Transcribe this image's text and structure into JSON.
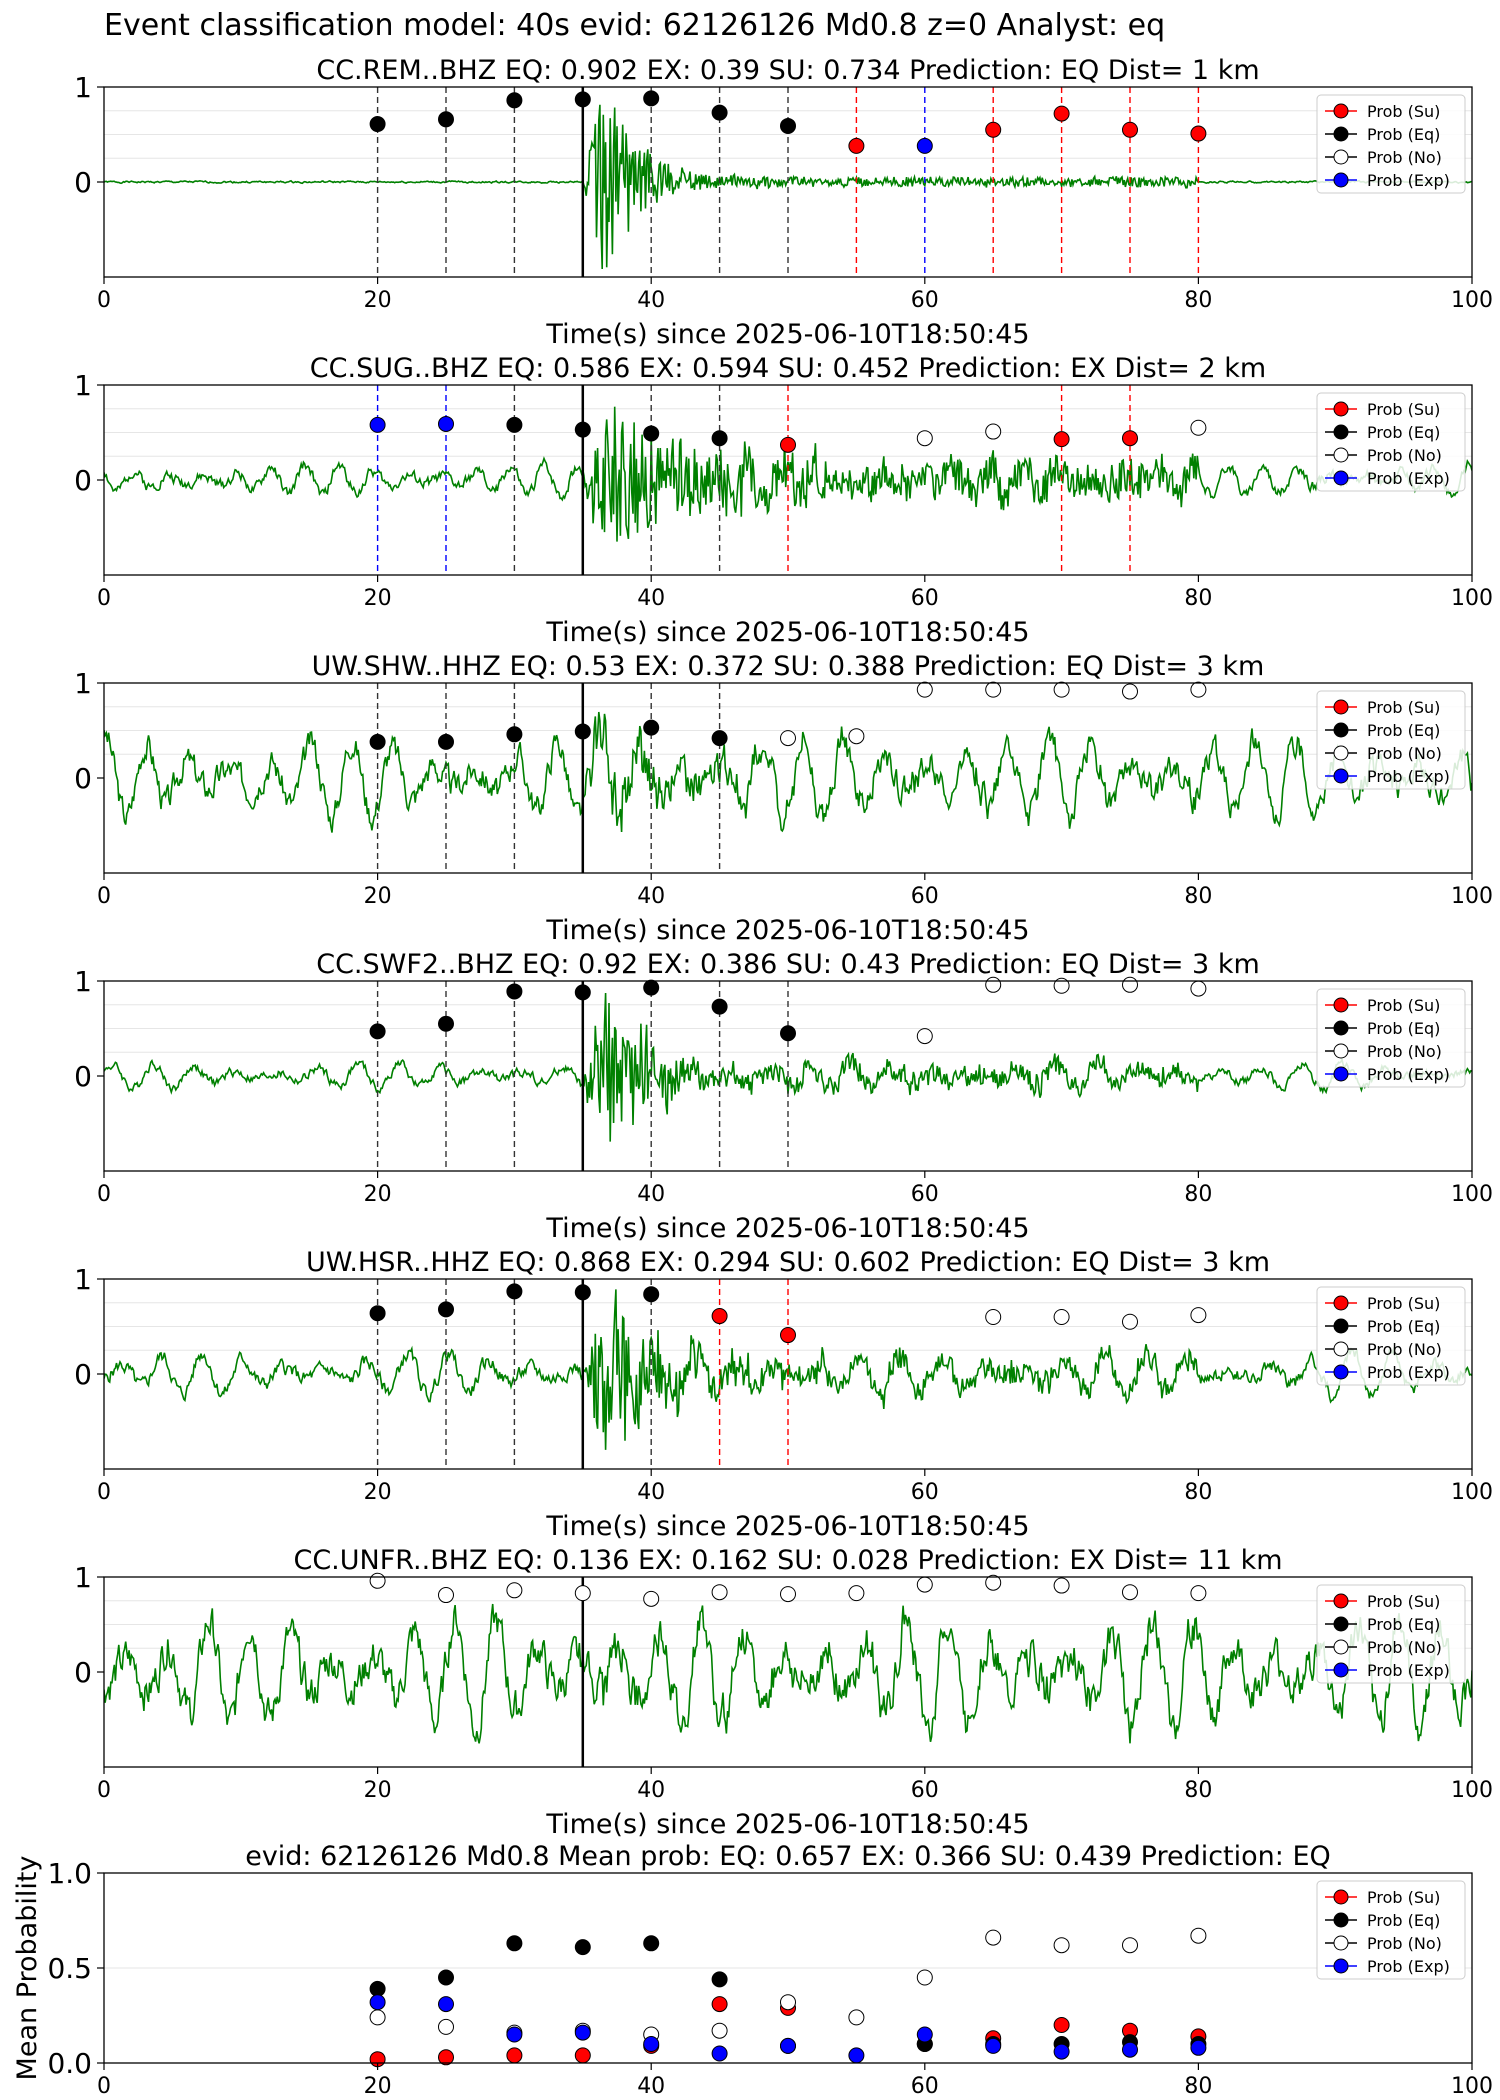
{
  "figure": {
    "suptitle": "Event classification model: 40s evid: 62126126 Md0.8 z=0 Analyst: eq",
    "xlabel": "Time(s) since 2025-06-10T18:50:45",
    "legend": [
      "Prob (Su)",
      "Prob (Eq)",
      "Prob (No)",
      "Prob (Exp)"
    ],
    "colors": {
      "su": "#ff0000",
      "eq": "#000000",
      "no": "#ffffff",
      "exp": "#0000ff",
      "trace": "#008000"
    }
  },
  "chart_data": [
    {
      "type": "scatter",
      "title": "CC.REM..BHZ   EQ: 0.902  EX: 0.39  SU: 0.734   Prediction: EQ    Dist= 1 km",
      "xlim": [
        0,
        100
      ],
      "ylim": [
        -1,
        1
      ],
      "xticks": [
        "0",
        "20",
        "40",
        "60",
        "80",
        "100"
      ],
      "yticks": [
        "0",
        "1"
      ],
      "x": [
        20,
        25,
        30,
        35,
        40,
        45,
        50,
        55,
        60,
        65,
        70,
        75,
        80
      ],
      "points": [
        {
          "x": 20,
          "y": 0.61,
          "class": "eq"
        },
        {
          "x": 25,
          "y": 0.66,
          "class": "eq"
        },
        {
          "x": 30,
          "y": 0.86,
          "class": "eq"
        },
        {
          "x": 35,
          "y": 0.87,
          "class": "eq"
        },
        {
          "x": 40,
          "y": 0.88,
          "class": "eq"
        },
        {
          "x": 45,
          "y": 0.73,
          "class": "eq"
        },
        {
          "x": 50,
          "y": 0.59,
          "class": "eq"
        },
        {
          "x": 55,
          "y": 0.38,
          "class": "su"
        },
        {
          "x": 60,
          "y": 0.38,
          "class": "exp"
        },
        {
          "x": 65,
          "y": 0.55,
          "class": "su"
        },
        {
          "x": 70,
          "y": 0.72,
          "class": "su"
        },
        {
          "x": 75,
          "y": 0.55,
          "class": "su"
        },
        {
          "x": 80,
          "y": 0.51,
          "class": "su"
        }
      ],
      "trace": {
        "noise": 0.02,
        "burst_amp": 0.95,
        "burst_start": 35,
        "burst_decay": 3,
        "coda": 0.05,
        "period": 0,
        "seed": 1
      }
    },
    {
      "type": "scatter",
      "title": "CC.SUG..BHZ   EQ: 0.586  EX: 0.594  SU: 0.452   Prediction: EX    Dist= 2 km",
      "xlim": [
        0,
        100
      ],
      "ylim": [
        -1,
        1
      ],
      "xticks": [
        "0",
        "20",
        "40",
        "60",
        "80",
        "100"
      ],
      "yticks": [
        "0",
        "1"
      ],
      "points": [
        {
          "x": 20,
          "y": 0.58,
          "class": "exp"
        },
        {
          "x": 25,
          "y": 0.59,
          "class": "exp"
        },
        {
          "x": 30,
          "y": 0.58,
          "class": "eq"
        },
        {
          "x": 35,
          "y": 0.53,
          "class": "eq"
        },
        {
          "x": 40,
          "y": 0.49,
          "class": "eq"
        },
        {
          "x": 45,
          "y": 0.44,
          "class": "eq"
        },
        {
          "x": 50,
          "y": 0.37,
          "class": "su"
        },
        {
          "x": 60,
          "y": 0.44,
          "class": "no"
        },
        {
          "x": 65,
          "y": 0.51,
          "class": "no"
        },
        {
          "x": 70,
          "y": 0.43,
          "class": "su"
        },
        {
          "x": 75,
          "y": 0.44,
          "class": "su"
        },
        {
          "x": 80,
          "y": 0.55,
          "class": "no"
        }
      ],
      "trace": {
        "noise": 0.12,
        "burst_amp": 0.75,
        "burst_start": 35,
        "burst_decay": 8,
        "coda": 0.18,
        "period": 2.5,
        "seed": 2
      }
    },
    {
      "type": "scatter",
      "title": "UW.SHW..HHZ   EQ: 0.53  EX: 0.372  SU: 0.388   Prediction: EQ    Dist= 3 km",
      "xlim": [
        0,
        100
      ],
      "ylim": [
        -1,
        1
      ],
      "xticks": [
        "0",
        "20",
        "40",
        "60",
        "80",
        "100"
      ],
      "yticks": [
        "0",
        "1"
      ],
      "points": [
        {
          "x": 20,
          "y": 0.38,
          "class": "eq"
        },
        {
          "x": 25,
          "y": 0.38,
          "class": "eq"
        },
        {
          "x": 30,
          "y": 0.46,
          "class": "eq"
        },
        {
          "x": 35,
          "y": 0.49,
          "class": "eq"
        },
        {
          "x": 40,
          "y": 0.53,
          "class": "eq"
        },
        {
          "x": 45,
          "y": 0.42,
          "class": "eq"
        },
        {
          "x": 50,
          "y": 0.42,
          "class": "no"
        },
        {
          "x": 55,
          "y": 0.44,
          "class": "no"
        },
        {
          "x": 60,
          "y": 0.93,
          "class": "no"
        },
        {
          "x": 65,
          "y": 0.93,
          "class": "no"
        },
        {
          "x": 70,
          "y": 0.93,
          "class": "no"
        },
        {
          "x": 75,
          "y": 0.91,
          "class": "no"
        },
        {
          "x": 80,
          "y": 0.93,
          "class": "no"
        }
      ],
      "trace": {
        "noise": 0.3,
        "burst_amp": 0.3,
        "burst_start": 35,
        "burst_decay": 6,
        "coda": 0.05,
        "period": 3,
        "seed": 3
      }
    },
    {
      "type": "scatter",
      "title": "CC.SWF2..BHZ   EQ: 0.92  EX: 0.386  SU: 0.43   Prediction: EQ    Dist= 3 km",
      "xlim": [
        0,
        100
      ],
      "ylim": [
        -1,
        1
      ],
      "xticks": [
        "0",
        "20",
        "40",
        "60",
        "80",
        "100"
      ],
      "yticks": [
        "0",
        "1"
      ],
      "points": [
        {
          "x": 20,
          "y": 0.47,
          "class": "eq"
        },
        {
          "x": 25,
          "y": 0.55,
          "class": "eq"
        },
        {
          "x": 30,
          "y": 0.89,
          "class": "eq"
        },
        {
          "x": 35,
          "y": 0.88,
          "class": "eq"
        },
        {
          "x": 40,
          "y": 0.93,
          "class": "eq"
        },
        {
          "x": 45,
          "y": 0.73,
          "class": "eq"
        },
        {
          "x": 50,
          "y": 0.45,
          "class": "eq"
        },
        {
          "x": 60,
          "y": 0.42,
          "class": "no"
        },
        {
          "x": 65,
          "y": 0.96,
          "class": "no"
        },
        {
          "x": 70,
          "y": 0.95,
          "class": "no"
        },
        {
          "x": 75,
          "y": 0.96,
          "class": "no"
        },
        {
          "x": 80,
          "y": 0.92,
          "class": "no"
        }
      ],
      "trace": {
        "noise": 0.1,
        "burst_amp": 0.8,
        "burst_start": 35,
        "burst_decay": 4,
        "coda": 0.1,
        "period": 3,
        "seed": 4
      }
    },
    {
      "type": "scatter",
      "title": "UW.HSR..HHZ   EQ: 0.868  EX: 0.294  SU: 0.602   Prediction: EQ    Dist= 3 km",
      "xlim": [
        0,
        100
      ],
      "ylim": [
        -1,
        1
      ],
      "xticks": [
        "0",
        "20",
        "40",
        "60",
        "80",
        "100"
      ],
      "yticks": [
        "0",
        "1"
      ],
      "points": [
        {
          "x": 20,
          "y": 0.64,
          "class": "eq"
        },
        {
          "x": 25,
          "y": 0.68,
          "class": "eq"
        },
        {
          "x": 30,
          "y": 0.87,
          "class": "eq"
        },
        {
          "x": 35,
          "y": 0.86,
          "class": "eq"
        },
        {
          "x": 40,
          "y": 0.84,
          "class": "eq"
        },
        {
          "x": 45,
          "y": 0.61,
          "class": "su"
        },
        {
          "x": 50,
          "y": 0.41,
          "class": "su"
        },
        {
          "x": 65,
          "y": 0.6,
          "class": "no"
        },
        {
          "x": 70,
          "y": 0.6,
          "class": "no"
        },
        {
          "x": 75,
          "y": 0.55,
          "class": "no"
        },
        {
          "x": 80,
          "y": 0.62,
          "class": "no"
        }
      ],
      "trace": {
        "noise": 0.16,
        "burst_amp": 0.8,
        "burst_start": 35,
        "burst_decay": 5,
        "coda": 0.1,
        "period": 3,
        "seed": 5
      }
    },
    {
      "type": "scatter",
      "title": "CC.UNFR..BHZ   EQ: 0.136  EX: 0.162  SU: 0.028   Prediction: EX    Dist= 11 km",
      "xlim": [
        0,
        100
      ],
      "ylim": [
        -1,
        1
      ],
      "xticks": [
        "0",
        "20",
        "40",
        "60",
        "80",
        "100"
      ],
      "yticks": [
        "0",
        "1"
      ],
      "points": [
        {
          "x": 20,
          "y": 0.96,
          "class": "no"
        },
        {
          "x": 25,
          "y": 0.81,
          "class": "no"
        },
        {
          "x": 30,
          "y": 0.86,
          "class": "no"
        },
        {
          "x": 35,
          "y": 0.83,
          "class": "no"
        },
        {
          "x": 40,
          "y": 0.77,
          "class": "no"
        },
        {
          "x": 45,
          "y": 0.84,
          "class": "no"
        },
        {
          "x": 50,
          "y": 0.82,
          "class": "no"
        },
        {
          "x": 55,
          "y": 0.83,
          "class": "no"
        },
        {
          "x": 60,
          "y": 0.92,
          "class": "no"
        },
        {
          "x": 65,
          "y": 0.94,
          "class": "no"
        },
        {
          "x": 70,
          "y": 0.91,
          "class": "no"
        },
        {
          "x": 75,
          "y": 0.84,
          "class": "no"
        },
        {
          "x": 80,
          "y": 0.83,
          "class": "no"
        }
      ],
      "trace": {
        "noise": 0.42,
        "burst_amp": 0.1,
        "burst_start": 35,
        "burst_decay": 5,
        "coda": 0.05,
        "period": 3,
        "seed": 6
      }
    },
    {
      "type": "scatter",
      "title": "evid: 62126126  Md0.8   Mean prob:   EQ: 0.657  EX: 0.366  SU: 0.439   Prediction: EQ",
      "ylabel": "Mean Probability",
      "xlim": [
        0,
        100
      ],
      "ylim": [
        0,
        1
      ],
      "xticks": [
        "0",
        "20",
        "40",
        "60",
        "80",
        "100"
      ],
      "yticks": [
        "0.0",
        "0.5",
        "1.0"
      ],
      "x": [
        20,
        25,
        30,
        35,
        40,
        45,
        50,
        55,
        60,
        65,
        70,
        75,
        80
      ],
      "series": [
        {
          "name": "Prob (Su)",
          "values": [
            0.02,
            0.03,
            0.04,
            0.04,
            0.09,
            0.31,
            0.29,
            null,
            0.1,
            0.13,
            0.2,
            0.17,
            0.14
          ]
        },
        {
          "name": "Prob (Eq)",
          "values": [
            0.39,
            0.45,
            0.63,
            0.61,
            0.63,
            0.44,
            0.09,
            null,
            0.1,
            0.1,
            0.1,
            0.11,
            0.1
          ]
        },
        {
          "name": "Prob (No)",
          "values": [
            0.24,
            0.19,
            0.16,
            0.17,
            0.15,
            0.17,
            0.32,
            0.24,
            0.45,
            0.66,
            0.62,
            0.62,
            0.67
          ]
        },
        {
          "name": "Prob (Exp)",
          "values": [
            0.32,
            0.31,
            0.15,
            0.16,
            0.1,
            0.05,
            0.09,
            0.04,
            0.15,
            0.09,
            0.06,
            0.07,
            0.08
          ]
        }
      ]
    }
  ]
}
